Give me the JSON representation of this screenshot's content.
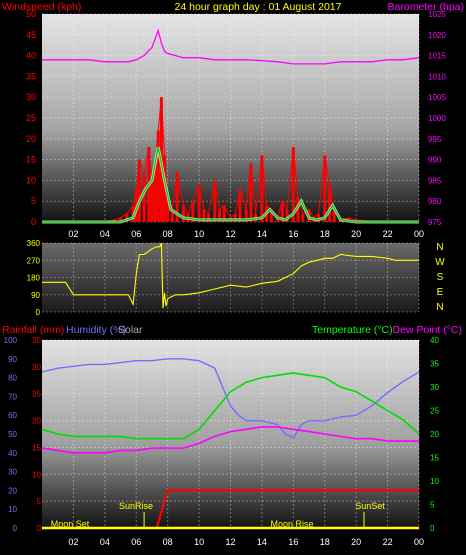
{
  "header": {
    "windspeed_label": "Windspeed (kph)",
    "title": "24 hour graph day : 01 August 2017",
    "barometer_label": "Barometer (hpa)"
  },
  "labels": {
    "rainfall": "Rainfall (mm)",
    "humidity": "Humidity (%)",
    "solar": "Solar",
    "temperature": "Temperature (°C)",
    "dew_point": "Dew Point (°C)",
    "sunrise": "SunRise",
    "sunset": "SunSet",
    "moonset": "Moon Set",
    "moonrise": "Moon Rise"
  },
  "colors": {
    "windspeed": "#ff0000",
    "gust": "#ff0000",
    "wind_avg": "#00cc00",
    "wind_light": "#ccffcc",
    "barometer": "#ff00ff",
    "direction": "#ffff00",
    "rainfall": "#ff0000",
    "humidity": "#7070ff",
    "solar": "#ffff00",
    "temperature": "#00dd00",
    "dew_point": "#ff00ff",
    "title": "#ffff00",
    "axis_left_top": "#ff0000",
    "axis_right_top": "#ff00ff",
    "axis_right_bottom": "#00ff00",
    "axis_humidity": "#7070ff",
    "axis_rain": "#ff0000",
    "direction_axis": "#ffff00",
    "compass": "#ffff00"
  },
  "chart_data": [
    {
      "type": "line",
      "name": "wind-barometer",
      "x_ticks": [
        "02",
        "04",
        "06",
        "08",
        "10",
        "12",
        "14",
        "16",
        "18",
        "20",
        "22",
        "00"
      ],
      "xlim": [
        0,
        24
      ],
      "y_left_ticks": [
        0,
        5,
        10,
        15,
        20,
        25,
        30,
        35,
        40,
        45,
        50
      ],
      "ylim_left": [
        0,
        50
      ],
      "y_right_ticks": [
        975,
        980,
        985,
        990,
        995,
        1000,
        1005,
        1010,
        1015,
        1020,
        1025
      ],
      "ylim_right": [
        975,
        1025
      ],
      "series": [
        {
          "key": "barometer",
          "axis": "right",
          "x": [
            0,
            1,
            2,
            3,
            4,
            5,
            5.5,
            6,
            6.5,
            7,
            7.2,
            7.4,
            7.6,
            7.8,
            8,
            8.5,
            9,
            10,
            11,
            12,
            13,
            14,
            15,
            16,
            17,
            18,
            19,
            20,
            21,
            22,
            23,
            24
          ],
          "y": [
            1014,
            1014,
            1014,
            1014,
            1013.5,
            1013.5,
            1013.5,
            1014,
            1015,
            1017,
            1019,
            1021,
            1018,
            1016,
            1015.5,
            1015,
            1014.5,
            1014.5,
            1014,
            1014,
            1014,
            1013.8,
            1013.5,
            1013,
            1013,
            1013,
            1013.5,
            1013.5,
            1013.5,
            1014,
            1014,
            1014.5
          ]
        },
        {
          "key": "windspeed",
          "axis": "left",
          "x": [
            0,
            1,
            2,
            3,
            4,
            4.6,
            5,
            5.4,
            5.8,
            6,
            6.2,
            6.5,
            6.8,
            7,
            7.2,
            7.4,
            7.6,
            7.8,
            8,
            8.3,
            8.6,
            9,
            9.3,
            9.6,
            10,
            10.3,
            10.6,
            11,
            11.3,
            11.6,
            12,
            12.3,
            12.6,
            13,
            13.3,
            13.6,
            14,
            14.3,
            14.6,
            15,
            15.3,
            15.6,
            16,
            16.3,
            16.6,
            17,
            17.3,
            17.6,
            18,
            18.3,
            18.6,
            19,
            19.5,
            20,
            21,
            22,
            23,
            24
          ],
          "y": [
            0,
            0,
            0,
            0,
            0,
            0.5,
            1,
            2,
            4,
            8,
            15,
            11,
            18,
            9,
            14,
            22,
            30,
            16,
            6,
            3,
            12,
            4,
            2,
            5,
            9,
            3,
            2,
            10,
            3,
            4,
            1,
            2,
            8,
            3,
            14,
            2,
            16,
            4,
            3,
            1,
            5,
            3,
            18,
            6,
            2,
            3,
            1,
            2,
            16,
            9,
            3,
            0.5,
            1,
            0.5,
            0,
            0,
            0,
            0
          ]
        },
        {
          "key": "wind_avg",
          "axis": "left",
          "x": [
            0,
            2,
            4,
            5,
            5.8,
            6.2,
            6.6,
            7,
            7.4,
            7.8,
            8.2,
            8.6,
            9,
            10,
            11,
            12,
            13,
            14,
            14.5,
            15,
            15.5,
            16,
            16.5,
            17,
            17.5,
            18,
            18.5,
            19,
            20,
            22,
            24
          ],
          "y": [
            0,
            0,
            0,
            0,
            1,
            5,
            8,
            10,
            18,
            10,
            3,
            2,
            1,
            0.5,
            0.5,
            0.5,
            0.5,
            1,
            3,
            1,
            0.5,
            2,
            5,
            1,
            0.5,
            1,
            4,
            0.5,
            0,
            0,
            0
          ]
        }
      ]
    },
    {
      "type": "line",
      "name": "wind-direction",
      "x_ticks": [
        "02",
        "04",
        "06",
        "08",
        "10",
        "12",
        "14",
        "16",
        "18",
        "20",
        "22",
        "00"
      ],
      "xlim": [
        0,
        24
      ],
      "y_ticks": [
        0,
        90,
        180,
        270,
        360
      ],
      "ylim": [
        0,
        360
      ],
      "compass": [
        "N",
        "W",
        "S",
        "E",
        "N"
      ],
      "series": [
        {
          "key": "direction",
          "x": [
            0,
            1,
            1.5,
            2,
            3,
            4,
            5,
            5.5,
            5.8,
            6,
            6.2,
            6.5,
            7,
            7.3,
            7.5,
            7.6,
            7.7,
            7.8,
            7.9,
            8,
            8.5,
            9,
            10,
            11,
            12,
            13,
            14,
            15,
            16,
            16.5,
            17,
            17.5,
            18,
            18.5,
            19,
            19.5,
            20,
            21,
            22,
            22.5,
            23,
            24
          ],
          "y": [
            155,
            155,
            155,
            90,
            90,
            90,
            90,
            90,
            40,
            200,
            300,
            300,
            330,
            340,
            340,
            360,
            20,
            100,
            30,
            70,
            90,
            90,
            100,
            120,
            140,
            130,
            150,
            160,
            200,
            240,
            260,
            270,
            280,
            280,
            300,
            295,
            290,
            290,
            280,
            270,
            270,
            270
          ]
        }
      ]
    },
    {
      "type": "line",
      "name": "temperature-humidity",
      "x_ticks": [
        "02",
        "04",
        "06",
        "08",
        "10",
        "12",
        "14",
        "16",
        "18",
        "20",
        "22",
        "00"
      ],
      "xlim": [
        0,
        24
      ],
      "y_humidity_ticks": [
        0,
        10,
        20,
        30,
        40,
        50,
        60,
        70,
        80,
        90,
        100
      ],
      "ylim_humidity": [
        0,
        100
      ],
      "y_rain_ticks": [
        0,
        5,
        10,
        15,
        20,
        25,
        30,
        35
      ],
      "ylim_rain": [
        0,
        35
      ],
      "y_temp_ticks": [
        0,
        5,
        10,
        15,
        20,
        25,
        30,
        35,
        40
      ],
      "ylim_temp": [
        0,
        40
      ],
      "sunrise_hour": 6.5,
      "sunset_hour": 20.5,
      "series": [
        {
          "key": "humidity",
          "axis": "humidity",
          "x": [
            0,
            1,
            2,
            3,
            4,
            5,
            6,
            7,
            8,
            9,
            10,
            11,
            11.5,
            12,
            12.5,
            13,
            13.5,
            14,
            14.5,
            15,
            15.5,
            16,
            16.5,
            17,
            18,
            19,
            20,
            21,
            22,
            23,
            24
          ],
          "y": [
            83,
            85,
            86,
            87,
            87,
            88,
            89,
            89,
            90,
            90,
            89,
            85,
            75,
            65,
            60,
            57,
            57,
            57,
            56,
            55,
            50,
            48,
            55,
            57,
            57,
            59,
            60,
            65,
            72,
            78,
            83
          ]
        },
        {
          "key": "temperature",
          "axis": "temp",
          "x": [
            0,
            1,
            2,
            3,
            4,
            5,
            6,
            7,
            8,
            9,
            10,
            11,
            12,
            13,
            14,
            15,
            16,
            17,
            18,
            19,
            20,
            21,
            22,
            23,
            24
          ],
          "y": [
            21,
            20,
            19.5,
            19.5,
            19.5,
            19.5,
            19,
            19,
            19,
            19,
            21,
            25,
            29,
            31,
            32,
            32.5,
            33,
            32.5,
            32,
            30,
            29,
            27,
            25,
            23,
            20
          ]
        },
        {
          "key": "dew_point",
          "axis": "temp",
          "x": [
            0,
            1,
            2,
            3,
            4,
            5,
            6,
            7,
            8,
            9,
            10,
            11,
            12,
            13,
            14,
            15,
            16,
            17,
            18,
            19,
            20,
            21,
            22,
            23,
            24
          ],
          "y": [
            17,
            16.5,
            16,
            16,
            16,
            16.5,
            16.5,
            17,
            17,
            17,
            18,
            19.5,
            20.5,
            21,
            21.5,
            21.5,
            21,
            20.5,
            20,
            19.5,
            19,
            19,
            18.5,
            18.5,
            18.5
          ]
        },
        {
          "key": "rainfall",
          "axis": "rain",
          "x": [
            0,
            7.3,
            7.6,
            8,
            8.3,
            24
          ],
          "y": [
            0,
            0,
            3,
            7,
            7,
            7
          ]
        },
        {
          "key": "solar",
          "axis": "humidity",
          "x": [
            0,
            24
          ],
          "y": [
            0,
            0
          ]
        }
      ]
    }
  ]
}
